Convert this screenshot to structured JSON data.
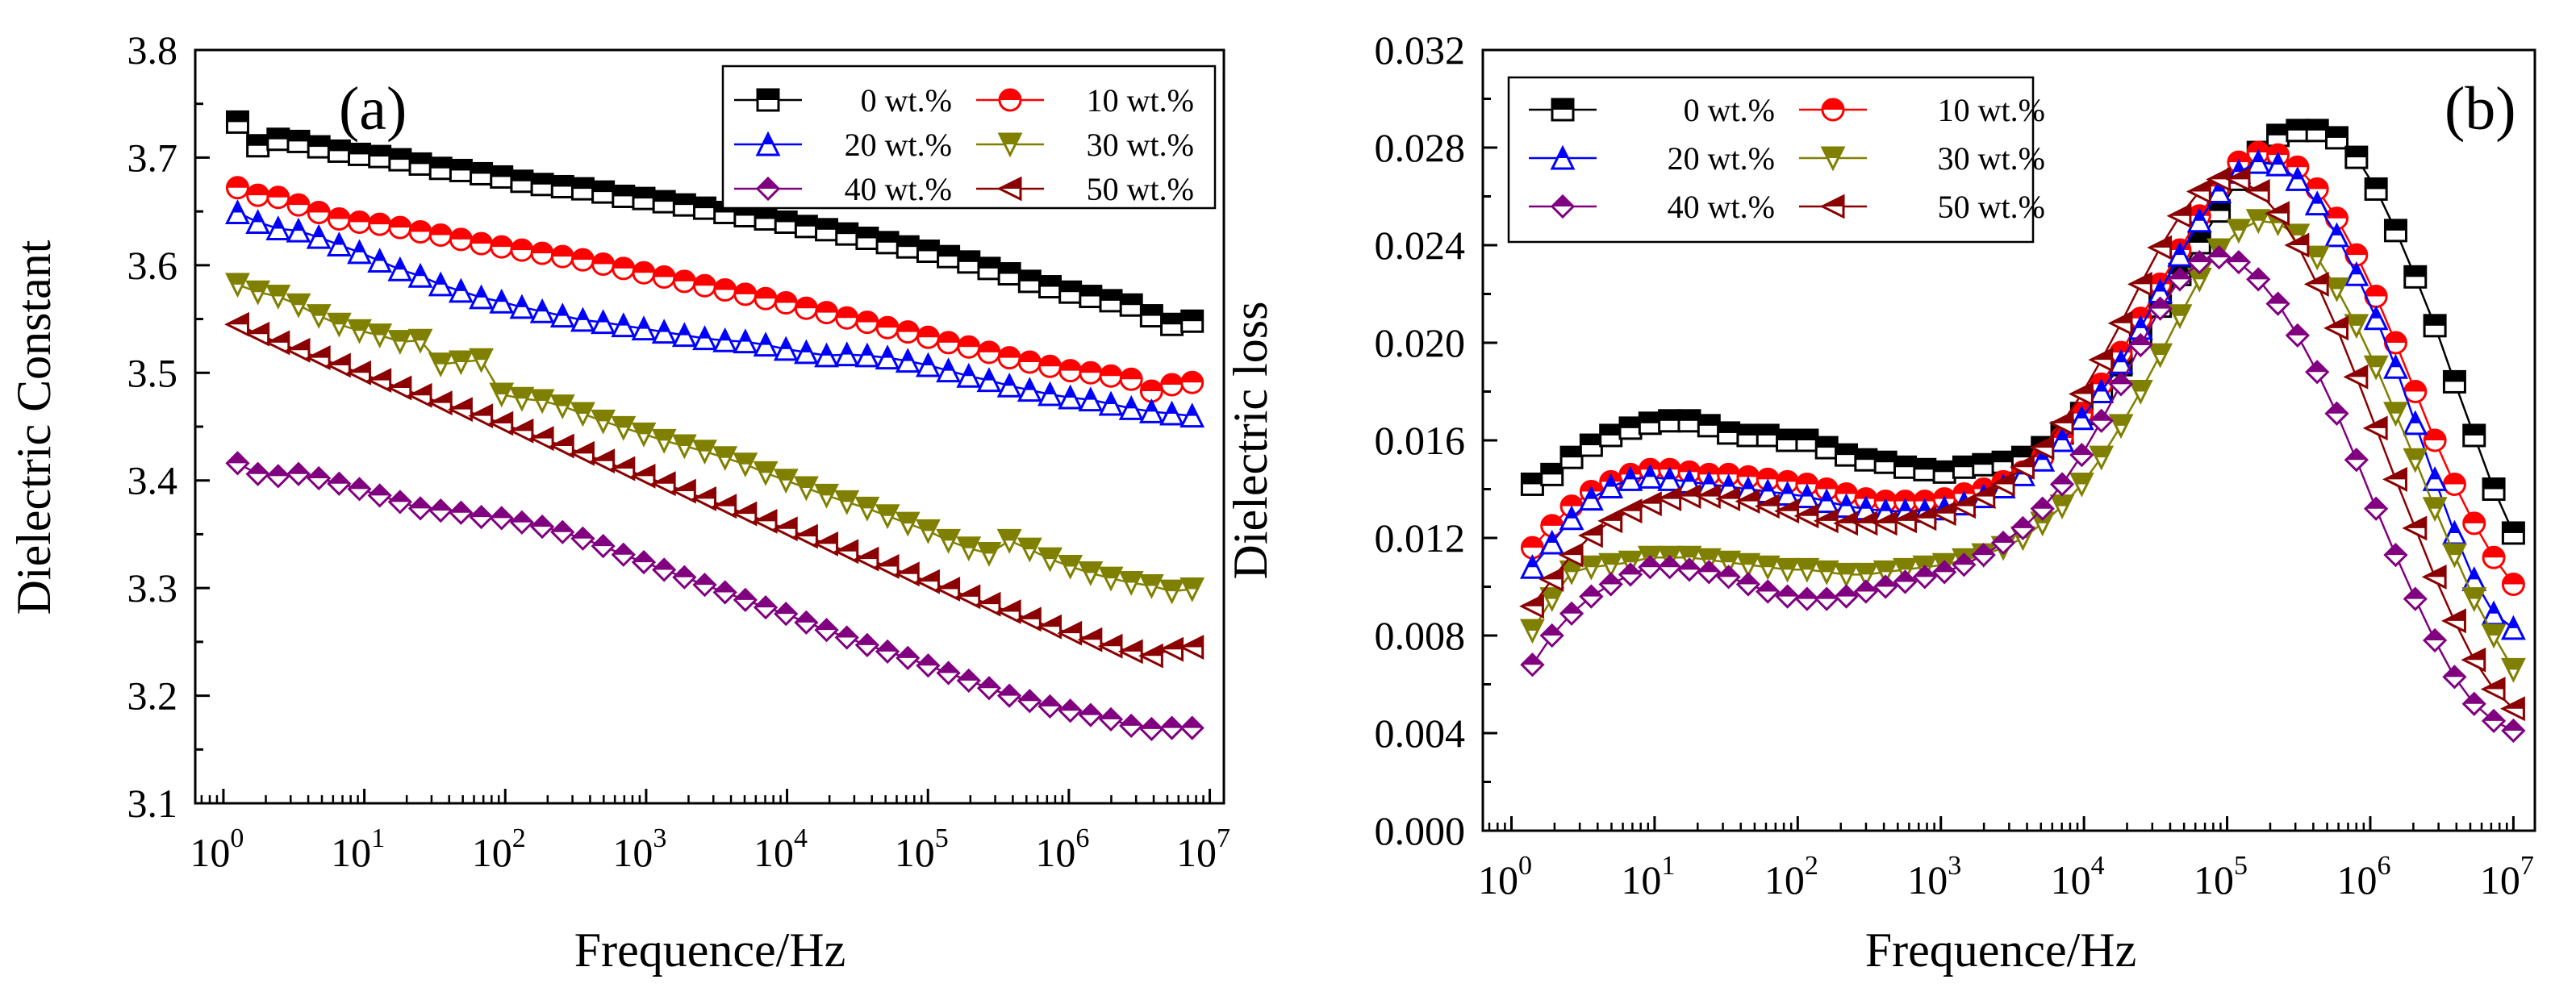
{
  "chart_data": [
    {
      "type": "line",
      "panel_label": "(a)",
      "xlabel": "Frequence/Hz",
      "ylabel": "Dielectric Constant",
      "xscale": "log",
      "xlim_exp": [
        -0.2,
        7.1
      ],
      "ylim": [
        3.1,
        3.8
      ],
      "yticks": [
        "3.1",
        "3.2",
        "3.3",
        "3.4",
        "3.5",
        "3.6",
        "3.7",
        "3.8"
      ],
      "xticks": [
        {
          "base": "10",
          "exp": "0"
        },
        {
          "base": "10",
          "exp": "1"
        },
        {
          "base": "10",
          "exp": "2"
        },
        {
          "base": "10",
          "exp": "3"
        },
        {
          "base": "10",
          "exp": "4"
        },
        {
          "base": "10",
          "exp": "5"
        },
        {
          "base": "10",
          "exp": "6"
        },
        {
          "base": "10",
          "exp": "7"
        }
      ],
      "legend_position": "top-right",
      "x_range_hz": [
        1.26,
        7500000
      ],
      "points_per_series": 48,
      "series": [
        {
          "name": "0 wt.%",
          "marker": "square",
          "color": "#000000",
          "values": [
            3.733,
            3.711,
            3.717,
            3.715,
            3.71,
            3.706,
            3.703,
            3.701,
            3.698,
            3.694,
            3.69,
            3.688,
            3.685,
            3.682,
            3.678,
            3.675,
            3.673,
            3.671,
            3.668,
            3.664,
            3.662,
            3.659,
            3.656,
            3.653,
            3.649,
            3.646,
            3.643,
            3.64,
            3.636,
            3.633,
            3.629,
            3.625,
            3.621,
            3.617,
            3.613,
            3.608,
            3.603,
            3.597,
            3.592,
            3.585,
            3.58,
            3.575,
            3.571,
            3.567,
            3.563,
            3.553,
            3.545,
            3.548
          ]
        },
        {
          "name": "10 wt.%",
          "marker": "circle",
          "color": "#ff0000",
          "values": [
            3.672,
            3.665,
            3.663,
            3.656,
            3.649,
            3.643,
            3.64,
            3.638,
            3.635,
            3.631,
            3.628,
            3.624,
            3.62,
            3.617,
            3.614,
            3.611,
            3.608,
            3.605,
            3.601,
            3.597,
            3.593,
            3.589,
            3.585,
            3.581,
            3.577,
            3.573,
            3.569,
            3.565,
            3.56,
            3.556,
            3.551,
            3.547,
            3.542,
            3.538,
            3.533,
            3.528,
            3.524,
            3.519,
            3.514,
            3.51,
            3.506,
            3.502,
            3.5,
            3.497,
            3.494,
            3.483,
            3.489,
            3.491
          ]
        },
        {
          "name": "20 wt.%",
          "marker": "triangle-up",
          "color": "#0000ff",
          "values": [
            3.649,
            3.64,
            3.634,
            3.632,
            3.626,
            3.619,
            3.612,
            3.604,
            3.596,
            3.59,
            3.582,
            3.576,
            3.57,
            3.566,
            3.561,
            3.557,
            3.553,
            3.549,
            3.547,
            3.544,
            3.541,
            3.538,
            3.535,
            3.532,
            3.53,
            3.529,
            3.526,
            3.522,
            3.519,
            3.516,
            3.517,
            3.516,
            3.514,
            3.511,
            3.507,
            3.502,
            3.497,
            3.493,
            3.488,
            3.484,
            3.48,
            3.477,
            3.475,
            3.471,
            3.467,
            3.464,
            3.462,
            3.46
          ]
        },
        {
          "name": "30 wt.%",
          "marker": "triangle-down",
          "color": "#808000",
          "values": [
            3.582,
            3.575,
            3.571,
            3.563,
            3.553,
            3.545,
            3.539,
            3.535,
            3.529,
            3.53,
            3.508,
            3.51,
            3.512,
            3.48,
            3.476,
            3.474,
            3.469,
            3.462,
            3.455,
            3.449,
            3.443,
            3.437,
            3.432,
            3.427,
            3.421,
            3.415,
            3.407,
            3.4,
            3.393,
            3.386,
            3.38,
            3.374,
            3.367,
            3.36,
            3.353,
            3.344,
            3.337,
            3.332,
            3.344,
            3.336,
            3.327,
            3.32,
            3.314,
            3.309,
            3.305,
            3.302,
            3.297,
            3.299
          ]
        },
        {
          "name": "40 wt.%",
          "marker": "diamond",
          "color": "#800080",
          "values": [
            3.416,
            3.406,
            3.404,
            3.406,
            3.402,
            3.397,
            3.392,
            3.386,
            3.38,
            3.374,
            3.372,
            3.37,
            3.366,
            3.365,
            3.361,
            3.357,
            3.352,
            3.346,
            3.339,
            3.331,
            3.324,
            3.317,
            3.31,
            3.303,
            3.296,
            3.289,
            3.282,
            3.276,
            3.268,
            3.261,
            3.254,
            3.247,
            3.241,
            3.235,
            3.228,
            3.221,
            3.214,
            3.207,
            3.2,
            3.195,
            3.19,
            3.186,
            3.182,
            3.178,
            3.172,
            3.169,
            3.17,
            3.17
          ]
        },
        {
          "name": "50 wt.%",
          "marker": "triangle-left",
          "color": "#8b0000",
          "values": [
            3.545,
            3.536,
            3.528,
            3.521,
            3.514,
            3.507,
            3.5,
            3.493,
            3.486,
            3.479,
            3.472,
            3.466,
            3.46,
            3.453,
            3.446,
            3.439,
            3.432,
            3.425,
            3.418,
            3.411,
            3.404,
            3.397,
            3.39,
            3.383,
            3.376,
            3.369,
            3.362,
            3.355,
            3.348,
            3.341,
            3.334,
            3.327,
            3.32,
            3.313,
            3.306,
            3.299,
            3.292,
            3.285,
            3.278,
            3.271,
            3.264,
            3.258,
            3.252,
            3.246,
            3.241,
            3.237,
            3.243,
            3.245
          ]
        }
      ]
    },
    {
      "type": "line",
      "panel_label": "(b)",
      "xlabel": "Frequence/Hz",
      "ylabel": "Dielectric loss",
      "xscale": "log",
      "xlim_exp": [
        -0.2,
        7.15
      ],
      "ylim": [
        0.0,
        0.032
      ],
      "yticks": [
        "0.000",
        "0.004",
        "0.008",
        "0.012",
        "0.016",
        "0.020",
        "0.024",
        "0.028",
        "0.032"
      ],
      "xticks": [
        {
          "base": "10",
          "exp": "0"
        },
        {
          "base": "10",
          "exp": "1"
        },
        {
          "base": "10",
          "exp": "2"
        },
        {
          "base": "10",
          "exp": "3"
        },
        {
          "base": "10",
          "exp": "4"
        },
        {
          "base": "10",
          "exp": "5"
        },
        {
          "base": "10",
          "exp": "6"
        },
        {
          "base": "10",
          "exp": "7"
        }
      ],
      "legend_position": "top-left",
      "x_range_hz": [
        1.4,
        10000000
      ],
      "points_per_series": 51,
      "series": [
        {
          "name": "0 wt.%",
          "marker": "square",
          "color": "#000000",
          "values": [
            0.0142,
            0.0146,
            0.0153,
            0.0158,
            0.0162,
            0.0165,
            0.0167,
            0.0168,
            0.0168,
            0.0166,
            0.0163,
            0.0162,
            0.0162,
            0.016,
            0.016,
            0.0157,
            0.0154,
            0.0152,
            0.0151,
            0.0149,
            0.0148,
            0.0147,
            0.0149,
            0.015,
            0.0151,
            0.0153,
            0.0157,
            0.0163,
            0.0171,
            0.018,
            0.0191,
            0.0203,
            0.0215,
            0.0228,
            0.0241,
            0.0254,
            0.0267,
            0.0278,
            0.0285,
            0.0287,
            0.0287,
            0.0284,
            0.0276,
            0.0263,
            0.0246,
            0.0227,
            0.0207,
            0.0184,
            0.0162,
            0.014,
            0.0122
          ]
        },
        {
          "name": "10 wt.%",
          "marker": "circle",
          "color": "#ff0000",
          "values": [
            0.0116,
            0.0125,
            0.0133,
            0.0139,
            0.0143,
            0.0146,
            0.0148,
            0.0148,
            0.0147,
            0.0146,
            0.0146,
            0.0145,
            0.0144,
            0.0143,
            0.0142,
            0.014,
            0.0138,
            0.0136,
            0.0135,
            0.0135,
            0.0135,
            0.0136,
            0.0138,
            0.014,
            0.0143,
            0.0147,
            0.0153,
            0.0161,
            0.0171,
            0.0183,
            0.0196,
            0.021,
            0.0224,
            0.0238,
            0.0252,
            0.0264,
            0.0274,
            0.0278,
            0.0277,
            0.0272,
            0.0263,
            0.0251,
            0.0236,
            0.0219,
            0.02,
            0.018,
            0.016,
            0.0142,
            0.0126,
            0.0112,
            0.0101
          ]
        },
        {
          "name": "20 wt.%",
          "marker": "triangle-up",
          "color": "#0000ff",
          "values": [
            0.0108,
            0.0118,
            0.0128,
            0.0136,
            0.0141,
            0.0144,
            0.0145,
            0.0144,
            0.0143,
            0.0142,
            0.0141,
            0.014,
            0.0139,
            0.0138,
            0.0137,
            0.0135,
            0.0133,
            0.0132,
            0.0131,
            0.0131,
            0.0131,
            0.0132,
            0.0134,
            0.0137,
            0.0141,
            0.0146,
            0.0152,
            0.016,
            0.0169,
            0.018,
            0.0192,
            0.0206,
            0.0221,
            0.0236,
            0.025,
            0.0262,
            0.027,
            0.0274,
            0.0273,
            0.0267,
            0.0257,
            0.0244,
            0.0228,
            0.021,
            0.019,
            0.0167,
            0.0144,
            0.0122,
            0.0103,
            0.0089,
            0.0083
          ]
        },
        {
          "name": "30 wt.%",
          "marker": "triangle-down",
          "color": "#808000",
          "values": [
            0.0082,
            0.0095,
            0.0106,
            0.0108,
            0.0109,
            0.011,
            0.0112,
            0.0112,
            0.0112,
            0.0111,
            0.011,
            0.0109,
            0.0108,
            0.0107,
            0.0107,
            0.0106,
            0.0105,
            0.0105,
            0.0106,
            0.0107,
            0.0108,
            0.0109,
            0.0111,
            0.0113,
            0.0116,
            0.012,
            0.0126,
            0.0133,
            0.0142,
            0.0153,
            0.0166,
            0.018,
            0.0195,
            0.0211,
            0.0226,
            0.0238,
            0.0246,
            0.025,
            0.0249,
            0.0244,
            0.0235,
            0.0222,
            0.0207,
            0.019,
            0.0171,
            0.0152,
            0.0132,
            0.0113,
            0.0095,
            0.008,
            0.0066
          ]
        },
        {
          "name": "40 wt.%",
          "marker": "diamond",
          "color": "#800080",
          "values": [
            0.0068,
            0.008,
            0.0089,
            0.0096,
            0.0101,
            0.0105,
            0.0108,
            0.0108,
            0.0107,
            0.0106,
            0.0104,
            0.0101,
            0.0098,
            0.0096,
            0.0095,
            0.0095,
            0.0096,
            0.0098,
            0.01,
            0.0102,
            0.0104,
            0.0106,
            0.0109,
            0.0113,
            0.0118,
            0.0124,
            0.0132,
            0.0142,
            0.0154,
            0.0168,
            0.0183,
            0.0199,
            0.0214,
            0.0226,
            0.0233,
            0.0235,
            0.0233,
            0.0226,
            0.0216,
            0.0203,
            0.0188,
            0.0171,
            0.0152,
            0.0132,
            0.0113,
            0.0095,
            0.0078,
            0.0063,
            0.0052,
            0.0045,
            0.0041
          ]
        },
        {
          "name": "50 wt.%",
          "marker": "triangle-left",
          "color": "#8b0000",
          "values": [
            0.0092,
            0.0103,
            0.0113,
            0.0121,
            0.0127,
            0.0131,
            0.0134,
            0.0136,
            0.0137,
            0.0137,
            0.0136,
            0.0135,
            0.0133,
            0.0131,
            0.0129,
            0.0127,
            0.0126,
            0.0126,
            0.0126,
            0.0127,
            0.0128,
            0.013,
            0.0133,
            0.0137,
            0.0142,
            0.0149,
            0.0157,
            0.0167,
            0.0179,
            0.0193,
            0.0208,
            0.0224,
            0.0239,
            0.0252,
            0.0262,
            0.0267,
            0.0267,
            0.0262,
            0.0253,
            0.024,
            0.0224,
            0.0206,
            0.0186,
            0.0165,
            0.0144,
            0.0124,
            0.0104,
            0.0086,
            0.007,
            0.0058,
            0.005
          ]
        }
      ]
    }
  ]
}
